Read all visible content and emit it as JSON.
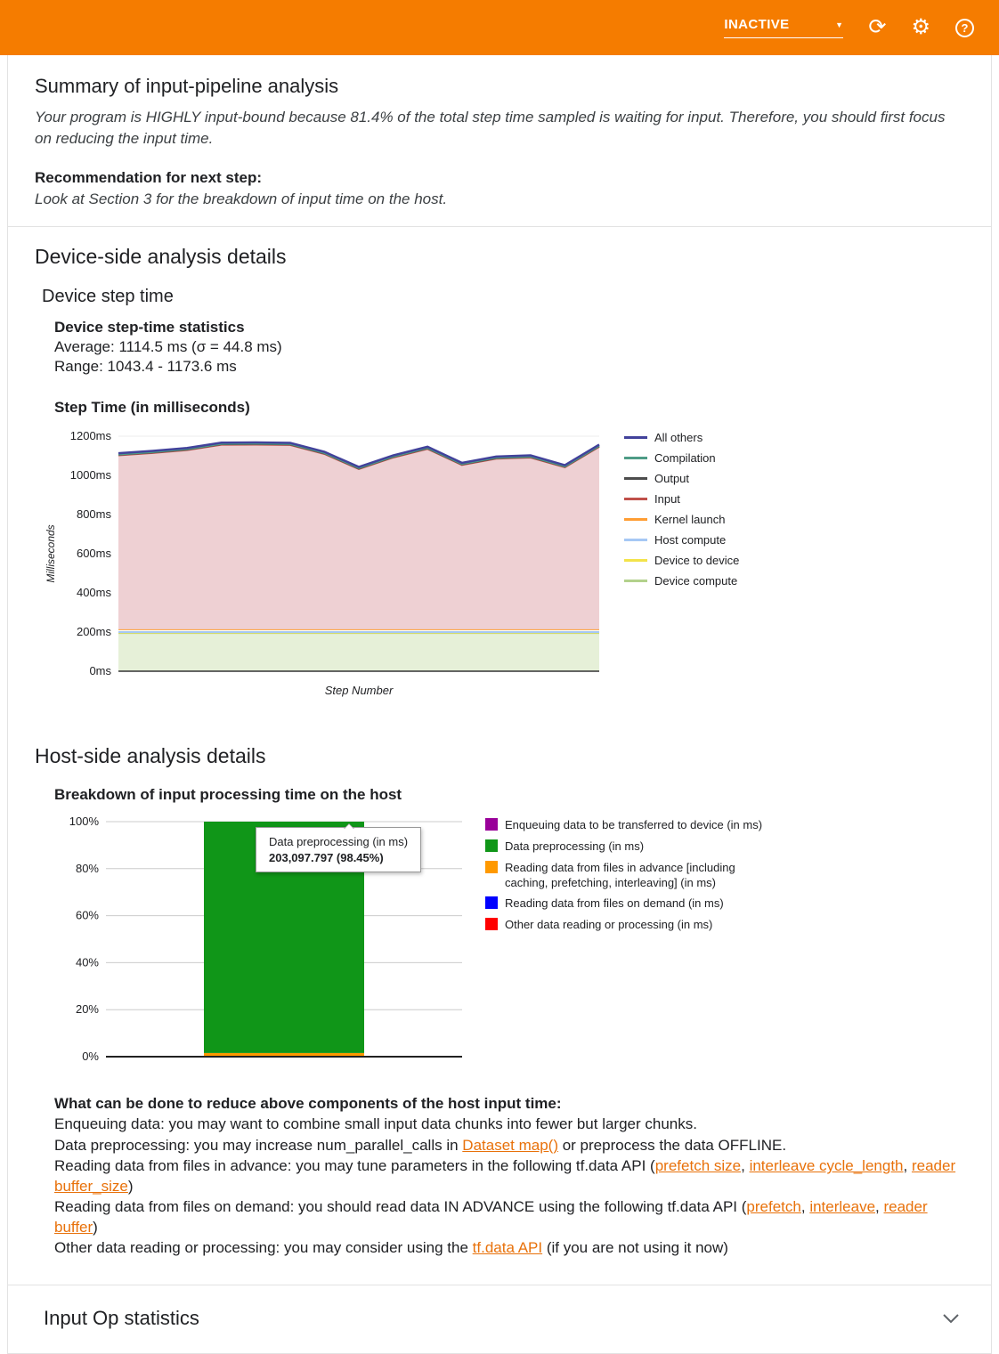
{
  "colors": {
    "topbar": "#f57c00",
    "link": "#e8710a"
  },
  "topbar": {
    "status": "INACTIVE",
    "icons": [
      "refresh-icon",
      "settings-icon",
      "help-icon"
    ]
  },
  "summary": {
    "title": "Summary of input-pipeline analysis",
    "body": "Your program is HIGHLY input-bound because 81.4% of the total step time sampled is waiting for input. Therefore, you should first focus on reducing the input time.",
    "recommendation_label": "Recommendation for next step:",
    "recommendation_body": "Look at Section 3 for the breakdown of input time on the host."
  },
  "device_section": {
    "title": "Device-side analysis details",
    "subtitle": "Device step time",
    "stats_title": "Device step-time statistics",
    "average": "Average: 1114.5 ms (σ = 44.8 ms)",
    "range": "Range: 1043.4 - 1173.6 ms",
    "chart_title": "Step Time (in milliseconds)"
  },
  "host_section": {
    "title": "Host-side analysis details",
    "chart_title": "Breakdown of input processing time on the host",
    "tooltip": {
      "title": "Data preprocessing (in ms)",
      "value": "203,097.797 (98.45%)"
    },
    "advice_title": "What can be done to reduce above components of the host input time:",
    "advice_lines": [
      {
        "segments": [
          {
            "t": "Enqueuing data: you may want to combine small input data chunks into fewer but larger chunks."
          }
        ]
      },
      {
        "segments": [
          {
            "t": "Data preprocessing: you may increase num_parallel_calls in "
          },
          {
            "t": "Dataset map()",
            "link": true
          },
          {
            "t": " or preprocess the data OFFLINE."
          }
        ]
      },
      {
        "segments": [
          {
            "t": "Reading data from files in advance: you may tune parameters in the following tf.data API ("
          },
          {
            "t": "prefetch size",
            "link": true
          },
          {
            "t": ", "
          },
          {
            "t": "interleave cycle_length",
            "link": true
          },
          {
            "t": ", "
          },
          {
            "t": "reader buffer_size",
            "link": true
          },
          {
            "t": ")"
          }
        ]
      },
      {
        "segments": [
          {
            "t": "Reading data from files on demand: you should read data IN ADVANCE using the following tf.data API ("
          },
          {
            "t": "prefetch",
            "link": true
          },
          {
            "t": ", "
          },
          {
            "t": "interleave",
            "link": true
          },
          {
            "t": ", "
          },
          {
            "t": "reader buffer",
            "link": true
          },
          {
            "t": ")"
          }
        ]
      },
      {
        "segments": [
          {
            "t": "Other data reading or processing: you may consider using the "
          },
          {
            "t": "tf.data API",
            "link": true
          },
          {
            "t": " (if you are not using it now)"
          }
        ]
      }
    ]
  },
  "input_op": {
    "title": "Input Op statistics"
  },
  "chart_data": [
    {
      "type": "area",
      "title": "Step Time (in milliseconds)",
      "xlabel": "Step Number",
      "ylabel": "Milliseconds",
      "ylim": [
        0,
        1200
      ],
      "yticks": [
        "0ms",
        "200ms",
        "400ms",
        "600ms",
        "800ms",
        "1000ms",
        "1200ms"
      ],
      "grid": true,
      "legend_position": "right",
      "legend_order_note": "legend shown top-to-bottom is reverse of stacking order",
      "series": [
        {
          "name": "Device compute",
          "color": "#b3d18c",
          "fill": "#e6f0d8",
          "values": [
            195,
            195,
            195,
            195,
            195,
            195,
            195,
            195,
            195,
            195,
            195,
            195,
            195,
            195,
            195
          ]
        },
        {
          "name": "Device to device",
          "color": "#f3e34a",
          "values": [
            3,
            3,
            3,
            3,
            3,
            3,
            3,
            3,
            3,
            3,
            3,
            3,
            3,
            3,
            3
          ]
        },
        {
          "name": "Host compute",
          "color": "#a6c8f5",
          "values": [
            2,
            2,
            2,
            2,
            2,
            2,
            2,
            2,
            2,
            2,
            2,
            2,
            2,
            2,
            2
          ]
        },
        {
          "name": "Kernel launch",
          "color": "#ff9d33",
          "values": [
            14,
            14,
            14,
            14,
            14,
            14,
            14,
            14,
            14,
            14,
            14,
            14,
            14,
            14,
            14
          ]
        },
        {
          "name": "Input",
          "color": "#c0504a",
          "fill": "#eed0d3",
          "values": [
            888,
            900,
            915,
            942,
            943,
            941,
            895,
            818,
            877,
            921,
            839,
            871,
            877,
            827,
            932
          ]
        },
        {
          "name": "Output",
          "color": "#4d4d4d",
          "values": [
            3,
            3,
            3,
            3,
            3,
            3,
            3,
            3,
            3,
            3,
            3,
            3,
            3,
            3,
            3
          ]
        },
        {
          "name": "Compilation",
          "color": "#4e9c86",
          "values": [
            2,
            2,
            2,
            2,
            2,
            2,
            2,
            2,
            2,
            2,
            2,
            2,
            2,
            2,
            2
          ]
        },
        {
          "name": "All others",
          "color": "#42429b",
          "values": [
            6,
            6,
            6,
            6,
            6,
            6,
            6,
            6,
            6,
            6,
            6,
            6,
            6,
            6,
            6
          ]
        }
      ],
      "step_totals_ms": [
        1113,
        1125,
        1140,
        1167,
        1168,
        1166,
        1120,
        1043,
        1102,
        1146,
        1064,
        1096,
        1102,
        1052,
        1157
      ]
    },
    {
      "type": "bar",
      "stacked": true,
      "percent_axis": true,
      "title": "Breakdown of input processing time on the host",
      "yticks": [
        "0%",
        "20%",
        "40%",
        "60%",
        "80%",
        "100%"
      ],
      "ylim": [
        0,
        100
      ],
      "categories": [
        ""
      ],
      "series": [
        {
          "name": "Enqueuing data to be transferred to device (in ms)",
          "color": "#990099",
          "percent": 0
        },
        {
          "name": "Data preprocessing (in ms)",
          "color": "#109618",
          "percent": 98.45,
          "value_ms": "203,097.797"
        },
        {
          "name": "Reading data from files in advance [including caching, prefetching, interleaving] (in ms)",
          "color": "#ff9900",
          "percent": 1.55
        },
        {
          "name": "Reading data from files on demand (in ms)",
          "color": "#0000ff",
          "percent": 0
        },
        {
          "name": "Other data reading or processing (in ms)",
          "color": "#ff0000",
          "percent": 0
        }
      ]
    }
  ]
}
